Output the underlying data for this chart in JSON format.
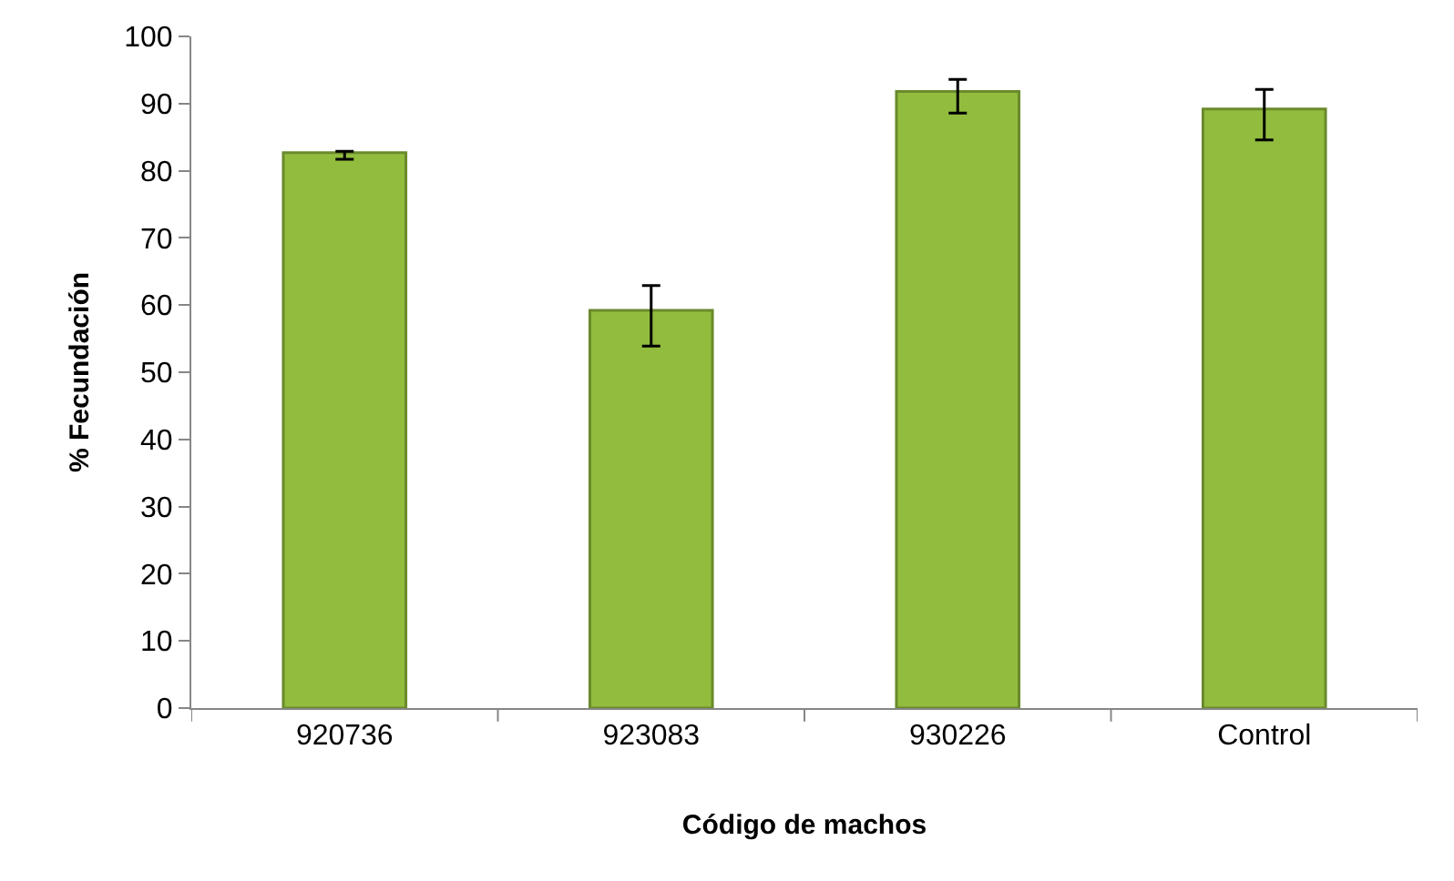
{
  "chart_data": {
    "type": "bar",
    "xlabel": "Código de machos",
    "ylabel": "% Fecundación",
    "categories": [
      "920736",
      "923083",
      "930226",
      "Control"
    ],
    "values": [
      82.7,
      59.2,
      91.8,
      89.2
    ],
    "errors": [
      [
        81.7,
        82.9
      ],
      [
        53.9,
        62.9
      ],
      [
        88.6,
        93.6
      ],
      [
        84.6,
        92.1
      ]
    ],
    "color": "#92bc3e",
    "ylim": [
      0,
      100
    ],
    "yticks": [
      0,
      10,
      20,
      30,
      40,
      50,
      60,
      70,
      80,
      90,
      100
    ]
  }
}
